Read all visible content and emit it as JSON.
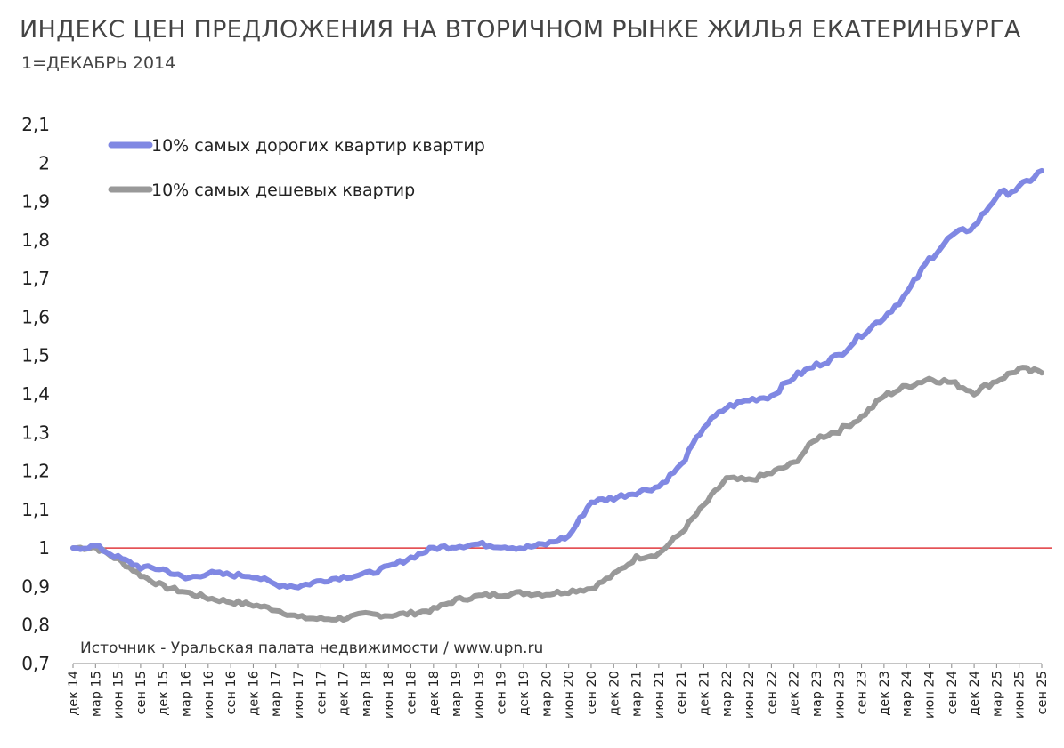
{
  "chart_data": {
    "type": "line",
    "title": "ИНДЕКС ЦЕН ПРЕДЛОЖЕНИЯ НА ВТОРИЧНОМ РЫНКЕ ЖИЛЬЯ ЕКАТЕРИНБУРГА",
    "subtitle": "1=ДЕКАБРЬ 2014",
    "source": "Источник - Уральская палата недвижимости / www.upn.ru",
    "ylim": [
      0.7,
      2.1
    ],
    "yticks": [
      "2,1",
      "2",
      "1,9",
      "1,8",
      "1,7",
      "1,6",
      "1,5",
      "1,4",
      "1,3",
      "1,2",
      "1,1",
      "1",
      "0,9",
      "0,8",
      "0,7"
    ],
    "ytick_values": [
      2.1,
      2.0,
      1.9,
      1.8,
      1.7,
      1.6,
      1.5,
      1.4,
      1.3,
      1.2,
      1.1,
      1.0,
      0.9,
      0.8,
      0.7
    ],
    "categories": [
      "дек 14",
      "мар 15",
      "июн 15",
      "сен 15",
      "дек 15",
      "мар 16",
      "июн 16",
      "сен 16",
      "дек 16",
      "мар 17",
      "июн 17",
      "сен 17",
      "дек 17",
      "мар 18",
      "июн 18",
      "сен 18",
      "дек 18",
      "мар 19",
      "июн 19",
      "сен 19",
      "дек 19",
      "мар 20",
      "июн 20",
      "сен 20",
      "дек 20",
      "мар 21",
      "июн 21",
      "сен 21",
      "дек 21",
      "мар 22",
      "июн 22",
      "сен 22",
      "дек 22",
      "мар 23",
      "июн 23",
      "сен 23",
      "дек 23",
      "мар 24",
      "июн 24",
      "сен 24",
      "дек 24",
      "мар 25",
      "июн 25",
      "сен 25"
    ],
    "reference_line": {
      "value": 1.0,
      "color": "#e0393e"
    },
    "legend_placement": "top-left",
    "grid": false,
    "series": [
      {
        "name": "10% самых дорогих квартир квартир",
        "color": "#8088e3",
        "values": [
          1.0,
          1.005,
          0.975,
          0.95,
          0.945,
          0.92,
          0.935,
          0.93,
          0.928,
          0.905,
          0.9,
          0.915,
          0.925,
          0.932,
          0.95,
          0.975,
          1.0,
          1.005,
          1.01,
          1.005,
          1.0,
          1.01,
          1.03,
          1.12,
          1.13,
          1.145,
          1.16,
          1.215,
          1.315,
          1.365,
          1.385,
          1.395,
          1.445,
          1.475,
          1.5,
          1.555,
          1.6,
          1.66,
          1.75,
          1.81,
          1.835,
          1.915,
          1.935,
          1.98
        ]
      },
      {
        "name": "10% самых дешевых квартир",
        "color": "#999999",
        "values": [
          1.0,
          1.002,
          0.97,
          0.93,
          0.9,
          0.885,
          0.87,
          0.86,
          0.852,
          0.84,
          0.82,
          0.815,
          0.817,
          0.828,
          0.825,
          0.83,
          0.84,
          0.865,
          0.875,
          0.88,
          0.883,
          0.88,
          0.888,
          0.895,
          0.93,
          0.975,
          0.985,
          1.04,
          1.11,
          1.18,
          1.175,
          1.195,
          1.22,
          1.285,
          1.305,
          1.34,
          1.395,
          1.42,
          1.44,
          1.43,
          1.405,
          1.435,
          1.465,
          1.455
        ]
      }
    ]
  }
}
